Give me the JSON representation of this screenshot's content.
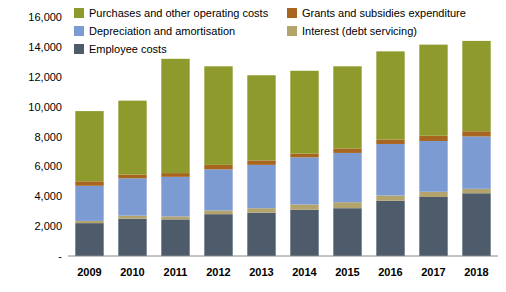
{
  "chart_data": {
    "type": "bar",
    "stacked": true,
    "grid": false,
    "categories": [
      "2009",
      "2010",
      "2011",
      "2012",
      "2013",
      "2014",
      "2015",
      "2016",
      "2017",
      "2018"
    ],
    "series": [
      {
        "name": "Employee costs",
        "color": "#4d5b6b",
        "values": [
          2200,
          2500,
          2450,
          2800,
          2900,
          3100,
          3200,
          3700,
          3950,
          4200
        ]
      },
      {
        "name": "Interest (debt servicing)",
        "color": "#b3a46e",
        "values": [
          150,
          200,
          200,
          250,
          300,
          350,
          400,
          350,
          350,
          300
        ]
      },
      {
        "name": "Depreciation and amortisation",
        "color": "#7b9bd2",
        "values": [
          2350,
          2500,
          2650,
          2750,
          2900,
          3150,
          3300,
          3450,
          3400,
          3500
        ]
      },
      {
        "name": "Grants and subsidies expenditure",
        "color": "#a7651f",
        "values": [
          300,
          250,
          250,
          300,
          300,
          250,
          300,
          300,
          350,
          350
        ]
      },
      {
        "name": "Purchases and other operating costs",
        "color": "#8e9a2c",
        "values": [
          4700,
          4950,
          7650,
          6600,
          5700,
          5550,
          5500,
          5900,
          6100,
          6050
        ]
      }
    ],
    "ylim": [
      0,
      16000
    ],
    "yticks": [
      {
        "value": 0,
        "label": "-"
      },
      {
        "value": 2000,
        "label": "2,000"
      },
      {
        "value": 4000,
        "label": "4,000"
      },
      {
        "value": 6000,
        "label": "6,000"
      },
      {
        "value": 8000,
        "label": "8,000"
      },
      {
        "value": 10000,
        "label": "10,000"
      },
      {
        "value": 12000,
        "label": "12,000"
      },
      {
        "value": 14000,
        "label": "14,000"
      },
      {
        "value": 16000,
        "label": "16,000"
      }
    ],
    "legend": "top"
  }
}
